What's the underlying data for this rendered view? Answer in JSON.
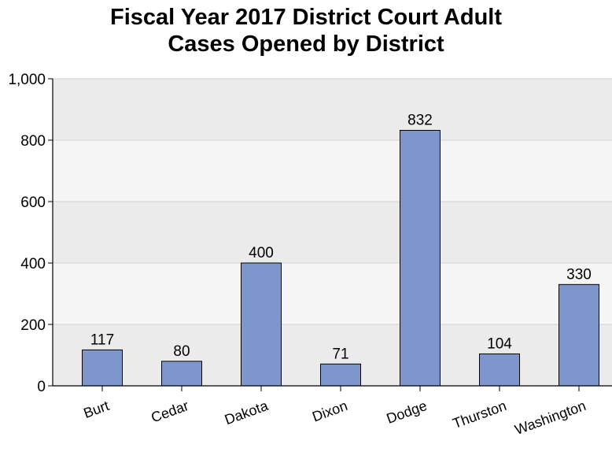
{
  "chart_data": {
    "type": "bar",
    "title_lines": [
      "Fiscal Year 2017 District Court Adult",
      "Cases Opened by District"
    ],
    "categories": [
      "Burt",
      "Cedar",
      "Dakota",
      "Dixon",
      "Dodge",
      "Thurston",
      "Washington"
    ],
    "values": [
      117,
      80,
      400,
      71,
      832,
      104,
      330
    ],
    "data_labels": [
      "117",
      "80",
      "400",
      "71",
      "832",
      "104",
      "330"
    ],
    "y_ticks": [
      0,
      200,
      400,
      600,
      800,
      1000
    ],
    "y_tick_labels": [
      "0",
      "200",
      "400",
      "600",
      "800",
      "1,000"
    ],
    "ylim": [
      0,
      1000
    ],
    "xlabel": "",
    "ylabel": "",
    "grid": true,
    "bar_color": "#7f96cc",
    "band_colors": [
      "#ebebeb",
      "#f5f5f5"
    ],
    "legend": "none"
  }
}
